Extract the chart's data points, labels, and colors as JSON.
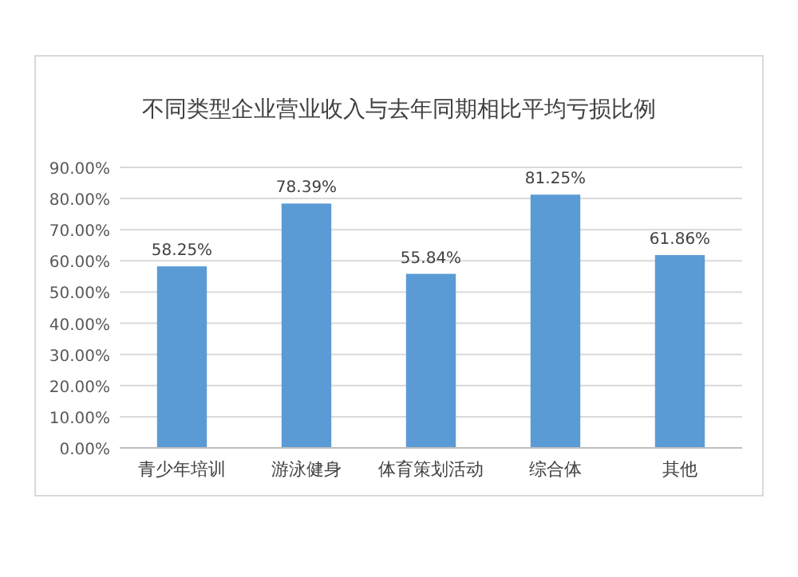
{
  "chart_data": {
    "type": "bar",
    "title": "不同类型企业营业收入与去年同期相比平均亏损比例",
    "categories": [
      "青少年培训",
      "游泳健身",
      "体育策划活动",
      "综合体",
      "其他"
    ],
    "values": [
      58.25,
      78.39,
      55.84,
      81.25,
      61.86
    ],
    "value_labels": [
      "58.25%",
      "78.39%",
      "55.84%",
      "81.25%",
      "61.86%"
    ],
    "color": "#5b9bd5",
    "ylim": [
      0,
      90
    ],
    "yticks": [
      {
        "value": 0,
        "label": "0.00%"
      },
      {
        "value": 10,
        "label": "10.00%"
      },
      {
        "value": 20,
        "label": "20.00%"
      },
      {
        "value": 30,
        "label": "30.00%"
      },
      {
        "value": 40,
        "label": "40.00%"
      },
      {
        "value": 50,
        "label": "50.00%"
      },
      {
        "value": 60,
        "label": "60.00%"
      },
      {
        "value": 70,
        "label": "70.00%"
      },
      {
        "value": 80,
        "label": "80.00%"
      },
      {
        "value": 90,
        "label": "90.00%"
      }
    ],
    "grid": "y"
  }
}
